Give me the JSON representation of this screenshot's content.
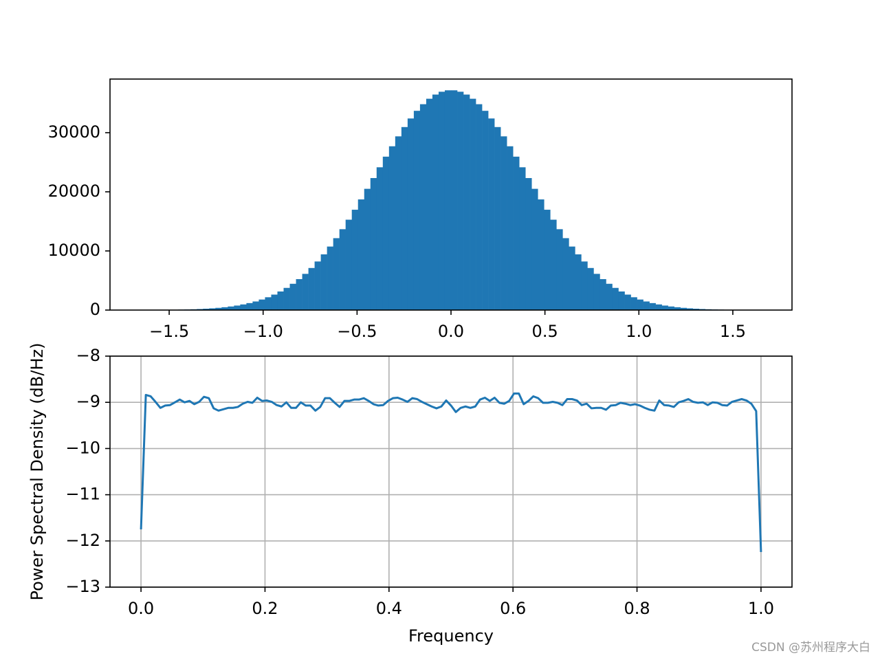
{
  "chart_data": [
    {
      "type": "histogram",
      "bins": [
        -1.65,
        -1.617,
        -1.584,
        -1.551,
        -1.518,
        -1.485,
        -1.452,
        -1.419,
        -1.386,
        -1.353,
        -1.32,
        -1.287,
        -1.254,
        -1.221,
        -1.188,
        -1.155,
        -1.122,
        -1.089,
        -1.056,
        -1.023,
        -0.99,
        -0.957,
        -0.924,
        -0.891,
        -0.858,
        -0.825,
        -0.792,
        -0.759,
        -0.726,
        -0.693,
        -0.66,
        -0.627,
        -0.594,
        -0.561,
        -0.528,
        -0.495,
        -0.462,
        -0.429,
        -0.396,
        -0.363,
        -0.33,
        -0.297,
        -0.264,
        -0.231,
        -0.198,
        -0.165,
        -0.132,
        -0.099,
        -0.066,
        -0.033,
        0,
        0.033,
        0.066,
        0.099,
        0.132,
        0.165,
        0.198,
        0.231,
        0.264,
        0.297,
        0.33,
        0.363,
        0.396,
        0.429,
        0.462,
        0.495,
        0.528,
        0.561,
        0.594,
        0.627,
        0.66,
        0.693,
        0.726,
        0.759,
        0.792,
        0.825,
        0.858,
        0.891,
        0.924,
        0.957,
        0.99,
        1.023,
        1.056,
        1.089,
        1.122,
        1.155,
        1.188,
        1.221,
        1.254,
        1.287,
        1.32,
        1.353,
        1.386,
        1.419,
        1.452,
        1.485,
        1.518,
        1.551,
        1.584,
        1.617,
        1.65
      ],
      "values": [
        12,
        17,
        23,
        32,
        43,
        58,
        77,
        102,
        134,
        175,
        227,
        293,
        376,
        479,
        606,
        761,
        952,
        1180,
        1454,
        1782,
        2169,
        2616,
        3143,
        3750,
        4445,
        5234,
        6123,
        7116,
        8217,
        9423,
        10743,
        12161,
        13678,
        15285,
        16971,
        18715,
        20508,
        22327,
        24150,
        25947,
        27703,
        29381,
        30954,
        32405,
        33699,
        34819,
        35742,
        36449,
        36928,
        37170,
        37170,
        36928,
        36449,
        35742,
        34819,
        33699,
        32405,
        30954,
        29381,
        27703,
        25947,
        24150,
        22327,
        20508,
        18715,
        16971,
        15285,
        13678,
        12161,
        10743,
        9423,
        8217,
        7116,
        6123,
        5234,
        4445,
        3750,
        3143,
        2616,
        2169,
        1782,
        1454,
        1180,
        952,
        761,
        606,
        479,
        376,
        293,
        227,
        175,
        134,
        102,
        77,
        58,
        43,
        32,
        23,
        17,
        12
      ],
      "color": "#1f77b4",
      "xlim": [
        -1.815,
        1.815
      ],
      "ylim": [
        0,
        39070
      ],
      "xticks": [
        {
          "value": -1.5,
          "label": "−1.5"
        },
        {
          "value": -1.0,
          "label": "−1.0"
        },
        {
          "value": -0.5,
          "label": "−0.5"
        },
        {
          "value": 0,
          "label": "0.0"
        },
        0.5,
        {
          "value": 1.0,
          "label": "1.0"
        },
        1.5
      ],
      "yticks": [
        0,
        10000,
        20000,
        30000
      ],
      "grid": false
    },
    {
      "type": "line",
      "x": [
        0,
        0.0078,
        0.0156,
        0.0234,
        0.0313,
        0.0391,
        0.0469,
        0.0547,
        0.0625,
        0.0703,
        0.0781,
        0.0859,
        0.0938,
        0.1016,
        0.1094,
        0.1172,
        0.125,
        0.1328,
        0.1406,
        0.1484,
        0.1563,
        0.1641,
        0.1719,
        0.1797,
        0.1875,
        0.1953,
        0.2031,
        0.2109,
        0.2188,
        0.2266,
        0.2344,
        0.2422,
        0.25,
        0.2578,
        0.2656,
        0.2734,
        0.2813,
        0.2891,
        0.2969,
        0.3047,
        0.3125,
        0.3203,
        0.3281,
        0.3359,
        0.3438,
        0.3516,
        0.3594,
        0.3672,
        0.375,
        0.3828,
        0.3906,
        0.3984,
        0.4063,
        0.4141,
        0.4219,
        0.4297,
        0.4375,
        0.4453,
        0.4531,
        0.4609,
        0.4688,
        0.4766,
        0.4844,
        0.4922,
        0.5,
        0.5078,
        0.5156,
        0.5234,
        0.5313,
        0.5391,
        0.5469,
        0.5547,
        0.5625,
        0.5703,
        0.5781,
        0.5859,
        0.5938,
        0.6016,
        0.6094,
        0.6172,
        0.625,
        0.6328,
        0.6406,
        0.6484,
        0.6563,
        0.6641,
        0.6719,
        0.6797,
        0.6875,
        0.6953,
        0.7031,
        0.7109,
        0.7188,
        0.7266,
        0.7344,
        0.7422,
        0.75,
        0.7578,
        0.7656,
        0.7734,
        0.7813,
        0.7891,
        0.7969,
        0.8047,
        0.8125,
        0.8203,
        0.8281,
        0.8359,
        0.8438,
        0.8516,
        0.8594,
        0.8672,
        0.875,
        0.8828,
        0.8906,
        0.8984,
        0.9063,
        0.9141,
        0.9219,
        0.9297,
        0.9375,
        0.9453,
        0.9531,
        0.9609,
        0.9688,
        0.9766,
        0.9844,
        0.9922,
        1
      ],
      "values": [
        -11.75,
        -8.84,
        -8.87,
        -8.99,
        -9.12,
        -9.07,
        -9.06,
        -9.0,
        -8.94,
        -9.0,
        -8.97,
        -9.04,
        -8.99,
        -8.88,
        -8.91,
        -9.13,
        -9.18,
        -9.15,
        -9.12,
        -9.12,
        -9.1,
        -9.03,
        -8.99,
        -9.01,
        -8.9,
        -8.97,
        -8.96,
        -8.99,
        -9.06,
        -9.09,
        -9.0,
        -9.12,
        -9.12,
        -9.0,
        -9.07,
        -9.07,
        -9.18,
        -9.1,
        -8.91,
        -8.91,
        -9.01,
        -9.1,
        -8.97,
        -8.97,
        -8.94,
        -8.94,
        -8.91,
        -8.97,
        -9.04,
        -9.07,
        -9.06,
        -8.97,
        -8.91,
        -8.9,
        -8.94,
        -8.99,
        -8.91,
        -8.93,
        -8.99,
        -9.04,
        -9.09,
        -9.13,
        -9.09,
        -8.96,
        -9.07,
        -9.21,
        -9.12,
        -9.09,
        -9.12,
        -9.09,
        -8.94,
        -8.9,
        -8.97,
        -8.9,
        -9.01,
        -9.03,
        -8.97,
        -8.81,
        -8.81,
        -9.04,
        -8.97,
        -8.87,
        -8.91,
        -9.01,
        -9.01,
        -8.99,
        -9.01,
        -9.06,
        -8.93,
        -8.93,
        -8.96,
        -9.06,
        -9.03,
        -9.13,
        -9.12,
        -9.12,
        -9.16,
        -9.07,
        -9.06,
        -9.01,
        -9.03,
        -9.06,
        -9.04,
        -9.07,
        -9.12,
        -9.16,
        -9.18,
        -8.96,
        -9.06,
        -9.07,
        -9.1,
        -9.0,
        -8.97,
        -8.93,
        -8.99,
        -9.01,
        -9.0,
        -9.06,
        -9.0,
        -9.01,
        -9.06,
        -9.07,
        -8.99,
        -8.96,
        -8.93,
        -8.96,
        -9.03,
        -9.19,
        -12.24
      ],
      "color": "#1f77b4",
      "xlim": [
        -0.05,
        1.05
      ],
      "ylim": [
        -13,
        -8
      ],
      "xticks": [
        {
          "value": 0,
          "label": "0.0"
        },
        0.2,
        0.4,
        0.6,
        0.8,
        {
          "value": 1,
          "label": "1.0"
        }
      ],
      "yticks": [
        {
          "value": -13,
          "label": "−13"
        },
        {
          "value": -12,
          "label": "−12"
        },
        {
          "value": -11,
          "label": "−11"
        },
        {
          "value": -10,
          "label": "−10"
        },
        {
          "value": -9,
          "label": "−9"
        },
        {
          "value": -8,
          "label": "−8"
        }
      ],
      "xlabel": "Frequency",
      "ylabel": "Power Spectral Density (dB/Hz)",
      "grid": true
    }
  ],
  "watermark": "CSDN @苏州程序大白"
}
